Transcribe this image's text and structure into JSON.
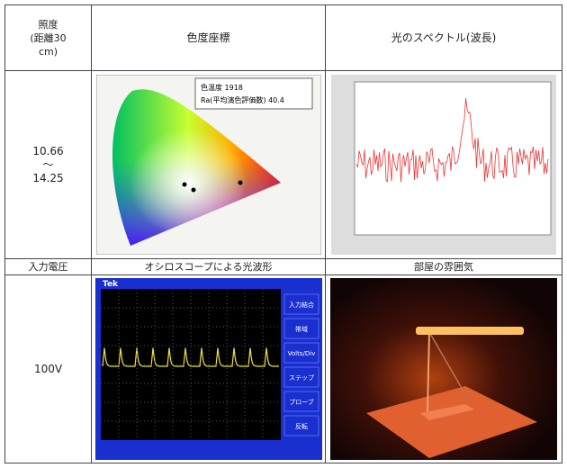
{
  "table": {
    "header": {
      "illuminance": [
        "照度",
        "(距離30",
        "cm)"
      ],
      "chromaticity": "色度座標",
      "spectrum": "光のスペクトル(波長)"
    },
    "row1": {
      "illuminance": [
        "10.66",
        "〜",
        "14.25"
      ]
    },
    "header2": {
      "voltage": "入力電圧",
      "waveform": "オシロスコープによる光波形",
      "room": "部屋の雰囲気"
    },
    "row2": {
      "voltage": "100V"
    }
  },
  "chromaticity_legend": [
    "色温度 1918",
    "Ra(平均演色評価数) 40.4"
  ],
  "oscilloscope": {
    "brand": "Tek",
    "menu": [
      "入力結合",
      "帯域",
      "Volts/Div",
      "ステップ",
      "プローブ",
      "反転"
    ]
  }
}
